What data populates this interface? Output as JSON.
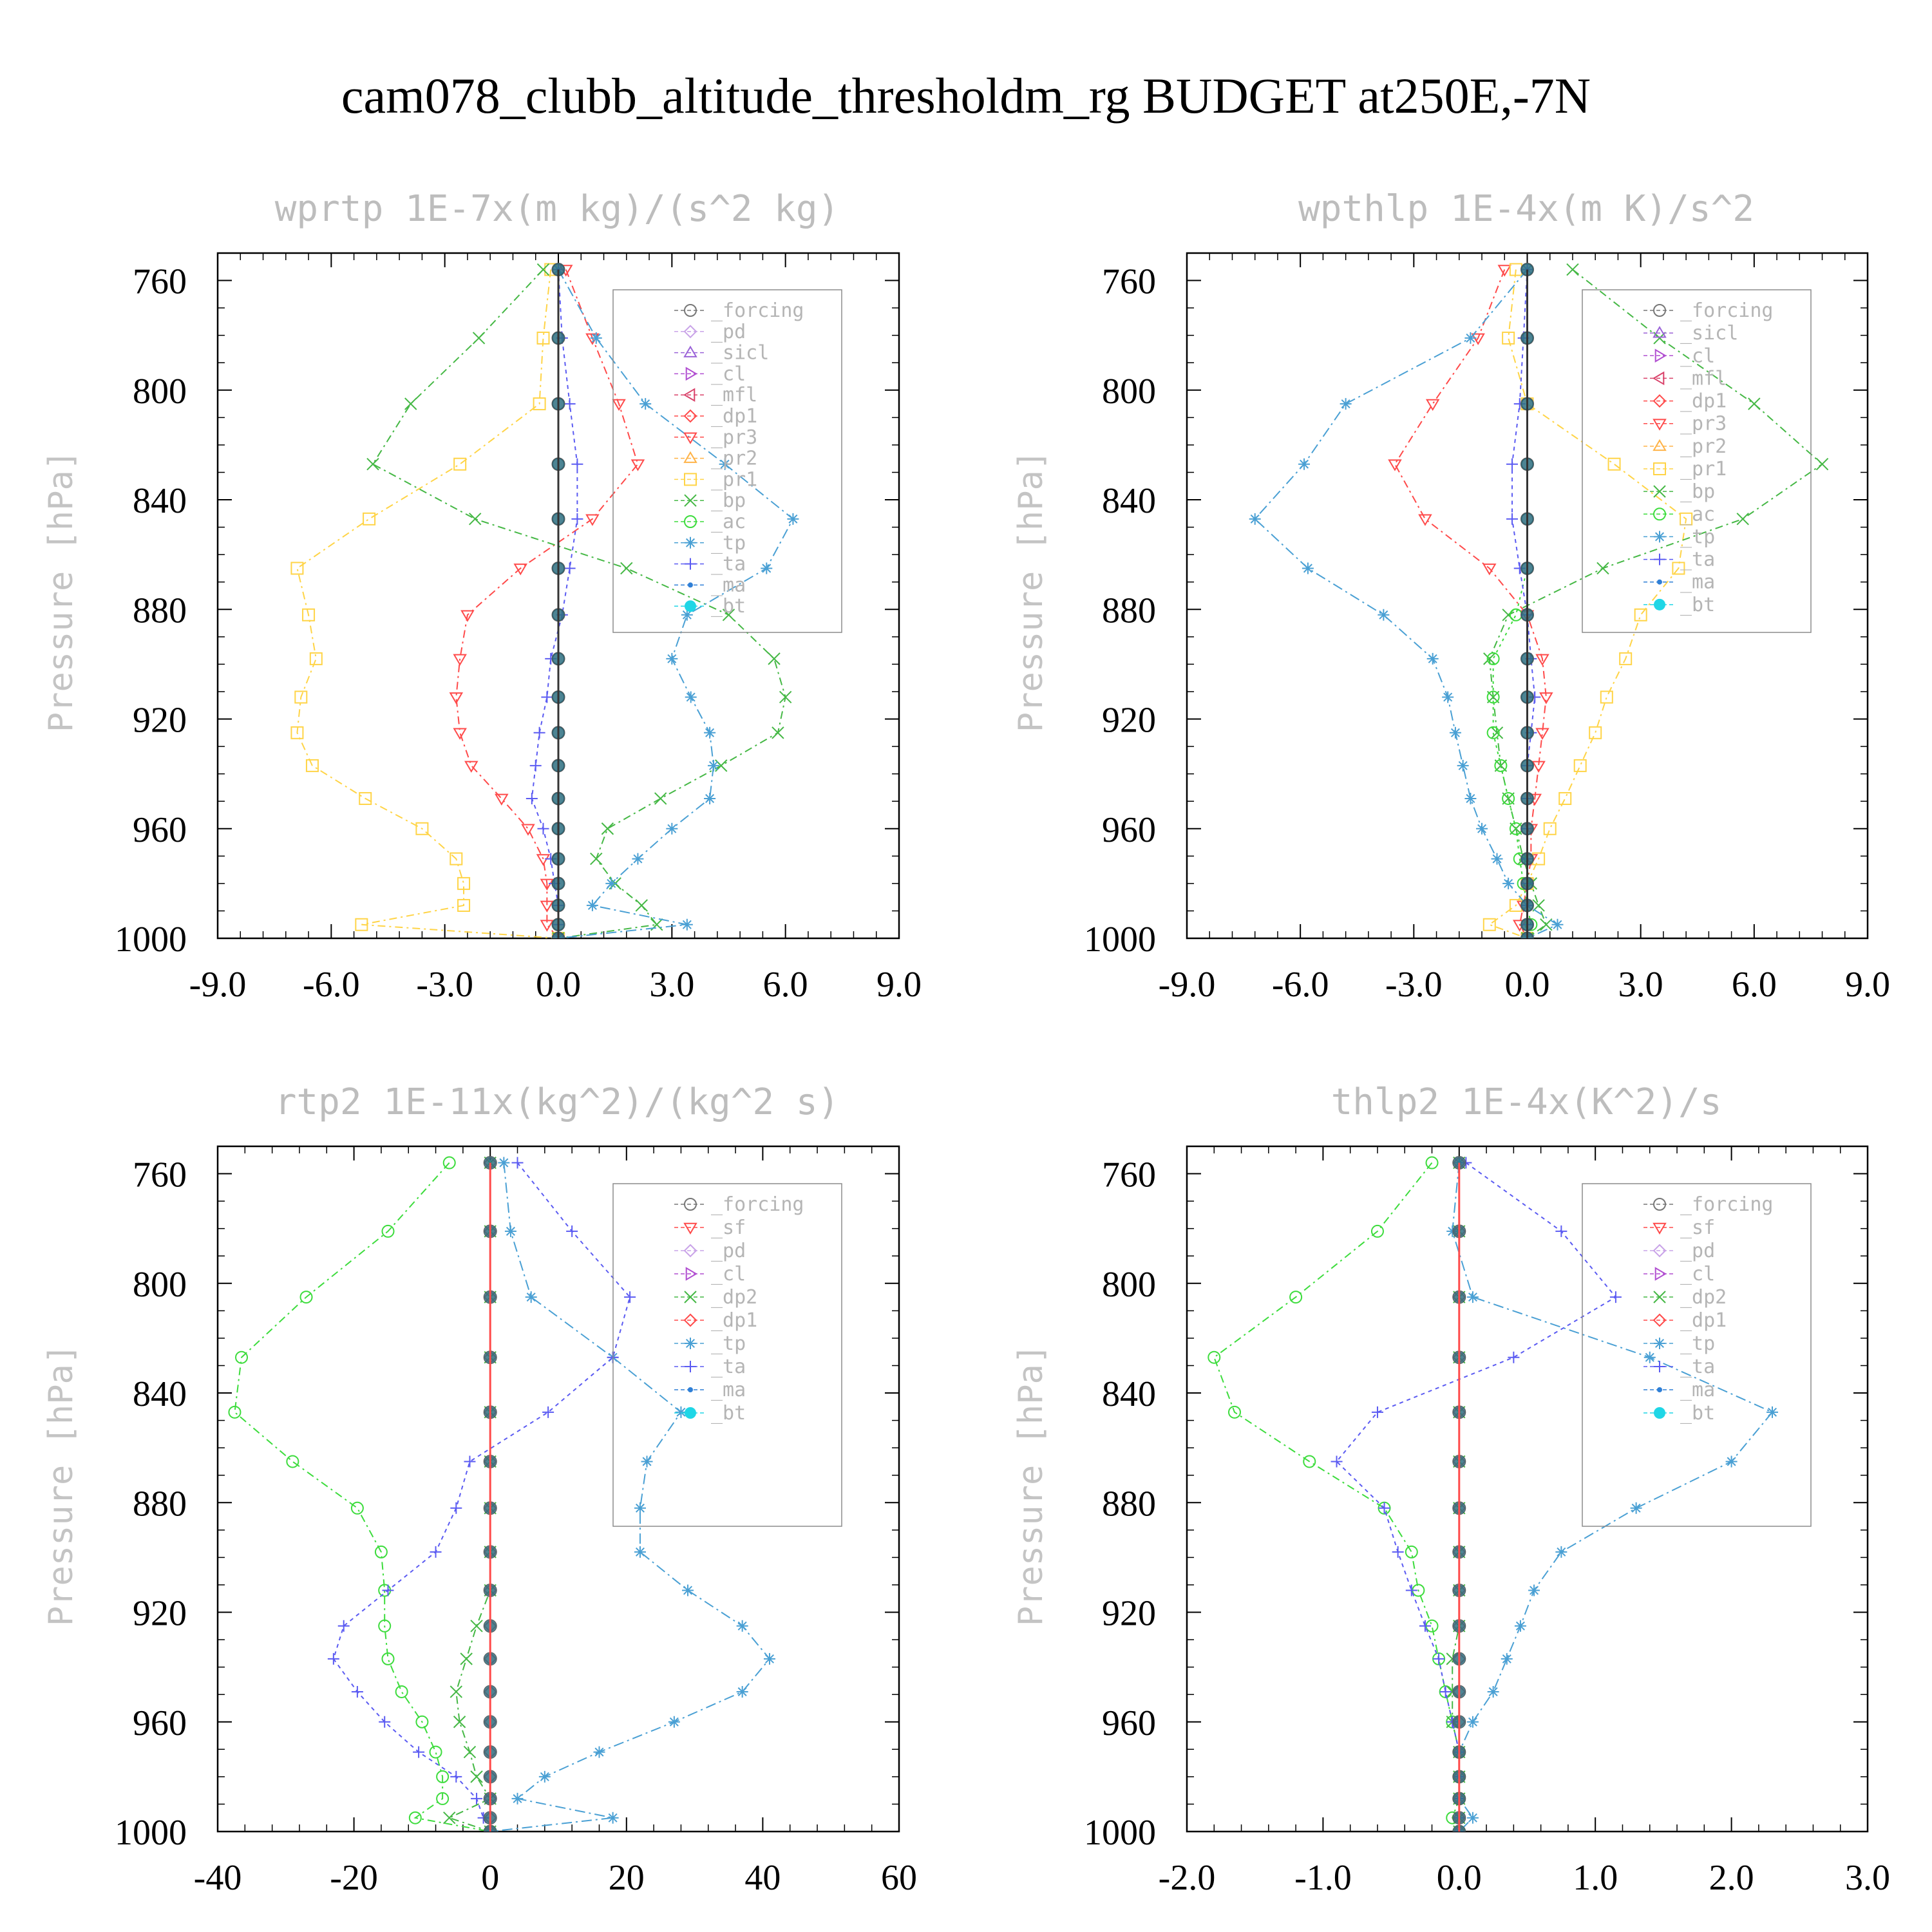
{
  "figure": {
    "title": "cam078_clubb_altitude_thresholdm_rg  BUDGET at250E,-7N"
  },
  "chart_data": [
    {
      "type": "line",
      "title": "wprtp  1E-7x(m kg)/(s^2 kg)",
      "ylabel": "Pressure [hPa]",
      "xlabel": "",
      "xlim": [
        -9,
        9
      ],
      "ylim": [
        1000,
        750
      ],
      "x_ticks": [
        "-9.0",
        "-6.0",
        "-3.0",
        "0.0",
        "3.0",
        "6.0",
        "9.0"
      ],
      "y_ticks": [
        "760",
        "800",
        "840",
        "880",
        "920",
        "960",
        "1000"
      ],
      "y": [
        756,
        781,
        805,
        827,
        847,
        865,
        882,
        898,
        912,
        925,
        937,
        949,
        960,
        971,
        980,
        988,
        995,
        1000
      ],
      "legend": [
        "_forcing",
        "_pd",
        "_sicl",
        "_cl",
        "_mfl",
        "_dp1",
        "_pr3",
        "_pr2",
        "_pr1",
        "_bp",
        "_ac",
        "_tp",
        "_ta",
        "_ma",
        "_bt"
      ],
      "series": [
        {
          "name": "_pr3",
          "color": "#ff4a4a",
          "dash": "12,6,3,6",
          "marker": "tri-down",
          "values": [
            0.2,
            0.9,
            1.6,
            2.1,
            0.9,
            -1.0,
            -2.4,
            -2.6,
            -2.7,
            -2.6,
            -2.3,
            -1.5,
            -0.8,
            -0.4,
            -0.3,
            -0.3,
            -0.3,
            0.0
          ]
        },
        {
          "name": "_pr1",
          "color": "#ffd447",
          "dash": "12,6,3,6",
          "marker": "square",
          "values": [
            -0.2,
            -0.4,
            -0.5,
            -2.6,
            -5.0,
            -6.9,
            -6.6,
            -6.4,
            -6.8,
            -6.9,
            -6.5,
            -5.1,
            -3.6,
            -2.7,
            -2.5,
            -2.5,
            -5.2,
            0.0
          ]
        },
        {
          "name": "_bp",
          "color": "#45b845",
          "dash": "12,6,3,6",
          "marker": "x",
          "values": [
            -0.4,
            -2.1,
            -3.9,
            -4.9,
            -2.2,
            1.8,
            4.5,
            5.7,
            6.0,
            5.8,
            4.3,
            2.7,
            1.3,
            1.0,
            1.5,
            2.2,
            2.6,
            0.0
          ]
        },
        {
          "name": "_tp",
          "color": "#4aa0d4",
          "dash": "16,6,3,6",
          "marker": "asterisk",
          "values": [
            0.0,
            1.0,
            2.3,
            4.4,
            6.2,
            5.5,
            3.4,
            3.0,
            3.5,
            4.0,
            4.1,
            4.0,
            3.0,
            2.1,
            1.4,
            0.9,
            3.4,
            0.0
          ]
        },
        {
          "name": "_ta",
          "color": "#5b5bf2",
          "dash": "6,6",
          "marker": "plus",
          "values": [
            0.0,
            0.1,
            0.3,
            0.5,
            0.5,
            0.3,
            0.1,
            -0.2,
            -0.3,
            -0.5,
            -0.6,
            -0.7,
            -0.4,
            -0.2,
            -0.1,
            0.0,
            0.0,
            0.0
          ]
        },
        {
          "name": "_forcing",
          "color": "#333333",
          "dash": "",
          "marker": "circle",
          "values": [
            0,
            0,
            0,
            0,
            0,
            0,
            0,
            0,
            0,
            0,
            0,
            0,
            0,
            0,
            0,
            0,
            0,
            0
          ]
        },
        {
          "name": "_bt",
          "color": "#1fd6e6",
          "dash": "",
          "marker": "dot",
          "values": [
            0,
            0,
            0,
            0,
            0,
            0,
            0,
            0,
            0,
            0,
            0,
            0,
            0,
            0,
            0,
            0,
            0,
            0
          ]
        }
      ]
    },
    {
      "type": "line",
      "title": "wpthlp  1E-4x(m K)/s^2",
      "ylabel": "Pressure [hPa]",
      "xlabel": "",
      "xlim": [
        -9,
        9
      ],
      "ylim": [
        1000,
        750
      ],
      "x_ticks": [
        "-9.0",
        "-6.0",
        "-3.0",
        "0.0",
        "3.0",
        "6.0",
        "9.0"
      ],
      "y_ticks": [
        "760",
        "800",
        "840",
        "880",
        "920",
        "960",
        "1000"
      ],
      "y": [
        756,
        781,
        805,
        827,
        847,
        865,
        882,
        898,
        912,
        925,
        937,
        949,
        960,
        971,
        980,
        988,
        995,
        1000
      ],
      "legend": [
        "_forcing",
        "_sicl",
        "_cl",
        "_mfl",
        "_dp1",
        "_pr3",
        "_pr2",
        "_pr1",
        "_bp",
        "_ac",
        "_tp",
        "_ta",
        "_ma",
        "_bt"
      ],
      "series": [
        {
          "name": "_pr3",
          "color": "#ff4a4a",
          "dash": "12,6,3,6",
          "marker": "tri-down",
          "values": [
            -0.6,
            -1.3,
            -2.5,
            -3.5,
            -2.7,
            -1.0,
            0.0,
            0.4,
            0.5,
            0.4,
            0.3,
            0.2,
            0.1,
            0.1,
            0.0,
            -0.1,
            -0.2,
            0.0
          ]
        },
        {
          "name": "_pr1",
          "color": "#ffd447",
          "dash": "12,6,3,6",
          "marker": "square",
          "values": [
            -0.3,
            -0.5,
            0.0,
            2.3,
            4.2,
            4.0,
            3.0,
            2.6,
            2.1,
            1.8,
            1.4,
            1.0,
            0.6,
            0.3,
            0.0,
            -0.3,
            -1.0,
            0.0
          ]
        },
        {
          "name": "_bp",
          "color": "#45b845",
          "dash": "12,6,3,6",
          "marker": "x",
          "values": [
            1.2,
            3.5,
            6.0,
            7.8,
            5.7,
            2.0,
            -0.5,
            -1.0,
            -0.9,
            -0.8,
            -0.7,
            -0.5,
            -0.3,
            -0.1,
            0.1,
            0.3,
            0.5,
            0.0
          ]
        },
        {
          "name": "_ac",
          "color": "#3ddc3d",
          "dash": "4,6",
          "marker": "circle",
          "values": [
            0.0,
            0.0,
            0.0,
            0.0,
            0.0,
            0.0,
            -0.3,
            -0.9,
            -0.9,
            -0.9,
            -0.7,
            -0.5,
            -0.3,
            -0.2,
            -0.1,
            0.0,
            0.1,
            0.0
          ]
        },
        {
          "name": "_tp",
          "color": "#4aa0d4",
          "dash": "16,6,3,6",
          "marker": "asterisk",
          "values": [
            0.0,
            -1.5,
            -4.8,
            -5.9,
            -7.2,
            -5.8,
            -3.8,
            -2.5,
            -2.1,
            -1.9,
            -1.7,
            -1.5,
            -1.2,
            -0.8,
            -0.5,
            0.0,
            0.8,
            0.0
          ]
        },
        {
          "name": "_ta",
          "color": "#5b5bf2",
          "dash": "6,6",
          "marker": "plus",
          "values": [
            0.0,
            -0.1,
            -0.2,
            -0.4,
            -0.4,
            -0.2,
            0.0,
            0.1,
            0.2,
            0.1,
            0.0,
            0.0,
            0.0,
            0.0,
            0.0,
            0.0,
            0.0,
            0.0
          ]
        },
        {
          "name": "_forcing",
          "color": "#333333",
          "dash": "",
          "marker": "circle",
          "values": [
            0,
            0,
            0,
            0,
            0,
            0,
            0,
            0,
            0,
            0,
            0,
            0,
            0,
            0,
            0,
            0,
            0,
            0
          ]
        },
        {
          "name": "_bt",
          "color": "#1fd6e6",
          "dash": "",
          "marker": "dot",
          "values": [
            0,
            0,
            0,
            0,
            0,
            0,
            0,
            0,
            0,
            0,
            0,
            0,
            0,
            0,
            0,
            0,
            0,
            0
          ]
        }
      ]
    },
    {
      "type": "line",
      "title": "rtp2  1E-11x(kg^2)/(kg^2 s)",
      "ylabel": "Pressure [hPa]",
      "xlabel": "",
      "xlim": [
        -40,
        60
      ],
      "ylim": [
        1000,
        750
      ],
      "x_ticks": [
        "-40",
        "-20",
        "0",
        "20",
        "40",
        "60"
      ],
      "y_ticks": [
        "760",
        "800",
        "840",
        "880",
        "920",
        "960",
        "1000"
      ],
      "y": [
        756,
        781,
        805,
        827,
        847,
        865,
        882,
        898,
        912,
        925,
        937,
        949,
        960,
        971,
        980,
        988,
        995,
        1000
      ],
      "legend": [
        "_forcing",
        "_sf",
        "_pd",
        "_cl",
        "_dp2",
        "_dp1",
        "_tp",
        "_ta",
        "_ma",
        "_bt"
      ],
      "series": [
        {
          "name": "_dp1",
          "color": "#3ddc3d",
          "dash": "12,6,3,6",
          "marker": "circle",
          "values": [
            -6.0,
            -15.0,
            -27.0,
            -36.5,
            -37.5,
            -29.0,
            -19.5,
            -16.0,
            -15.5,
            -15.5,
            -15.0,
            -13.0,
            -10.0,
            -8.0,
            -7.0,
            -7.0,
            -11.0,
            0.0
          ]
        },
        {
          "name": "_dp2",
          "color": "#45b845",
          "dash": "12,6,3,6",
          "marker": "x",
          "values": [
            0.0,
            0.0,
            0.0,
            0.0,
            0.0,
            0.0,
            0.0,
            0.0,
            0.0,
            -2.0,
            -3.5,
            -5.0,
            -4.5,
            -3.0,
            -2.0,
            0.0,
            -6.0,
            0.0
          ]
        },
        {
          "name": "_tp",
          "color": "#4aa0d4",
          "dash": "16,6,3,6",
          "marker": "asterisk",
          "values": [
            2.0,
            3.0,
            6.0,
            18.0,
            28.0,
            23.0,
            22.0,
            22.0,
            29.0,
            37.0,
            41.0,
            37.0,
            27.0,
            16.0,
            8.0,
            4.0,
            18.0,
            0.0
          ]
        },
        {
          "name": "_ta",
          "color": "#5b5bf2",
          "dash": "6,6",
          "marker": "plus",
          "values": [
            4.0,
            12.0,
            20.5,
            18.0,
            8.5,
            -3.0,
            -5.0,
            -8.0,
            -15.0,
            -21.5,
            -23.0,
            -19.5,
            -15.5,
            -10.5,
            -5.0,
            -2.0,
            -1.0,
            0.0
          ]
        },
        {
          "name": "_forcing",
          "color": "#ff4a4a",
          "dash": "",
          "marker": "diamond",
          "values": [
            0,
            0,
            0,
            0,
            0,
            0,
            0,
            0,
            0,
            0,
            0,
            0,
            0,
            0,
            0,
            0,
            0,
            0
          ]
        },
        {
          "name": "_bt",
          "color": "#1fd6e6",
          "dash": "",
          "marker": "dot",
          "values": [
            0,
            0,
            0,
            0,
            0,
            0,
            0,
            0,
            0,
            0,
            0,
            0,
            0,
            0,
            0,
            0,
            0,
            0
          ]
        }
      ]
    },
    {
      "type": "line",
      "title": "thlp2  1E-4x(K^2)/s",
      "ylabel": "Pressure [hPa]",
      "xlabel": "",
      "xlim": [
        -2,
        3
      ],
      "ylim": [
        1000,
        750
      ],
      "x_ticks": [
        "-2.0",
        "-1.0",
        "0.0",
        "1.0",
        "2.0",
        "3.0"
      ],
      "y_ticks": [
        "760",
        "800",
        "840",
        "880",
        "920",
        "960",
        "1000"
      ],
      "y": [
        756,
        781,
        805,
        827,
        847,
        865,
        882,
        898,
        912,
        925,
        937,
        949,
        960,
        971,
        980,
        988,
        995,
        1000
      ],
      "legend": [
        "_forcing",
        "_sf",
        "_pd",
        "_cl",
        "_dp2",
        "_dp1",
        "_tp",
        "_ta",
        "_ma",
        "_bt"
      ],
      "series": [
        {
          "name": "_dp1",
          "color": "#3ddc3d",
          "dash": "12,6,3,6",
          "marker": "circle",
          "values": [
            -0.2,
            -0.6,
            -1.2,
            -1.8,
            -1.65,
            -1.1,
            -0.55,
            -0.35,
            -0.3,
            -0.2,
            -0.15,
            -0.1,
            -0.05,
            0.0,
            0.0,
            0.0,
            -0.05,
            0.0
          ]
        },
        {
          "name": "_dp2",
          "color": "#45b845",
          "dash": "12,6,3,6",
          "marker": "x",
          "values": [
            0.0,
            0.0,
            0.0,
            0.0,
            0.0,
            0.0,
            0.0,
            0.0,
            0.0,
            0.0,
            -0.05,
            -0.05,
            -0.05,
            0.0,
            0.0,
            0.0,
            0.0,
            0.0
          ]
        },
        {
          "name": "_tp",
          "color": "#4aa0d4",
          "dash": "16,6,3,6",
          "marker": "asterisk",
          "values": [
            0.0,
            -0.05,
            0.1,
            1.4,
            2.3,
            2.0,
            1.3,
            0.75,
            0.55,
            0.45,
            0.35,
            0.25,
            0.1,
            0.0,
            0.0,
            0.0,
            0.1,
            0.0
          ]
        },
        {
          "name": "_ta",
          "color": "#5b5bf2",
          "dash": "6,6",
          "marker": "plus",
          "values": [
            0.05,
            0.75,
            1.15,
            0.4,
            -0.6,
            -0.9,
            -0.55,
            -0.45,
            -0.35,
            -0.25,
            -0.15,
            -0.1,
            -0.05,
            0.0,
            0.0,
            0.0,
            0.0,
            0.0
          ]
        },
        {
          "name": "_forcing",
          "color": "#ff4a4a",
          "dash": "",
          "marker": "diamond",
          "values": [
            0,
            0,
            0,
            0,
            0,
            0,
            0,
            0,
            0,
            0,
            0,
            0,
            0,
            0,
            0,
            0,
            0,
            0
          ]
        },
        {
          "name": "_bt",
          "color": "#1fd6e6",
          "dash": "",
          "marker": "dot",
          "values": [
            0,
            0,
            0,
            0,
            0,
            0,
            0,
            0,
            0,
            0,
            0,
            0,
            0,
            0,
            0,
            0,
            0,
            0
          ]
        }
      ]
    }
  ]
}
